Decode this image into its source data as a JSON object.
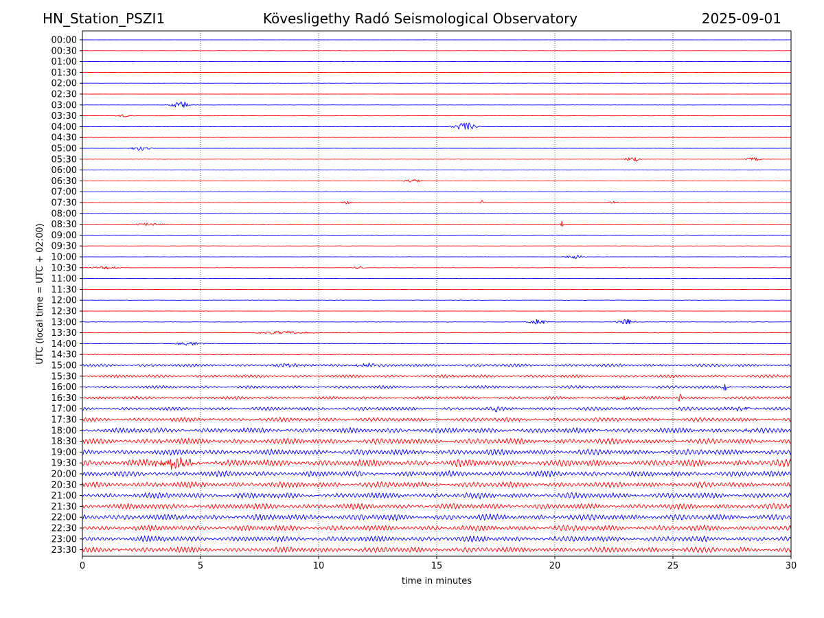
{
  "header": {
    "station": "HN_Station_PSZI1",
    "observatory": "Kövesligethy Radó Seismological Observatory",
    "date": "2025-09-01"
  },
  "chart_data": {
    "type": "line",
    "xlabel": "time in minutes",
    "ylabel": "UTC (local time = UTC + 02:00)",
    "xlim": [
      0,
      30
    ],
    "xticks": [
      0,
      5,
      10,
      15,
      20,
      25,
      30
    ],
    "vertical_gridlines": [
      5,
      10,
      15,
      20,
      25
    ],
    "grid_style": "dotted",
    "colors": {
      "even_rows": "#0000ff",
      "odd_rows": "#ff0000"
    },
    "row_labels": [
      "00:00",
      "00:30",
      "01:00",
      "01:30",
      "02:00",
      "02:30",
      "03:00",
      "03:30",
      "04:00",
      "04:30",
      "05:00",
      "05:30",
      "06:00",
      "06:30",
      "07:00",
      "07:30",
      "08:00",
      "08:30",
      "09:00",
      "09:30",
      "10:00",
      "10:30",
      "11:00",
      "11:30",
      "12:00",
      "12:30",
      "13:00",
      "13:30",
      "14:00",
      "14:30",
      "15:00",
      "15:30",
      "16:00",
      "16:30",
      "17:00",
      "17:30",
      "18:00",
      "18:30",
      "19:00",
      "19:30",
      "20:00",
      "20:30",
      "21:00",
      "21:30",
      "22:00",
      "22:30",
      "23:00",
      "23:30"
    ],
    "noise_level": [
      0.05,
      0.05,
      0.05,
      0.05,
      0.05,
      0.05,
      0.08,
      0.06,
      0.08,
      0.05,
      0.08,
      0.08,
      0.06,
      0.08,
      0.1,
      0.1,
      0.1,
      0.1,
      0.08,
      0.08,
      0.1,
      0.1,
      0.08,
      0.08,
      0.1,
      0.1,
      0.12,
      0.12,
      0.15,
      0.2,
      0.25,
      0.25,
      0.25,
      0.25,
      0.3,
      0.35,
      0.45,
      0.5,
      0.5,
      0.6,
      0.5,
      0.5,
      0.5,
      0.5,
      0.55,
      0.5,
      0.5,
      0.5
    ],
    "events": [
      {
        "row": 6,
        "x": 4.2,
        "amp": 0.6,
        "width": 0.6
      },
      {
        "row": 7,
        "x": 1.8,
        "amp": 0.3,
        "width": 0.4
      },
      {
        "row": 8,
        "x": 16.2,
        "amp": 0.8,
        "width": 0.6
      },
      {
        "row": 10,
        "x": 2.5,
        "amp": 0.4,
        "width": 0.5
      },
      {
        "row": 11,
        "x": 23.3,
        "amp": 0.5,
        "width": 0.4
      },
      {
        "row": 11,
        "x": 28.4,
        "amp": 0.4,
        "width": 0.4
      },
      {
        "row": 13,
        "x": 14.0,
        "amp": 0.3,
        "width": 0.5
      },
      {
        "row": 15,
        "x": 11.2,
        "amp": 0.3,
        "width": 0.3
      },
      {
        "row": 15,
        "x": 16.9,
        "amp": 0.5,
        "width": 0.1
      },
      {
        "row": 15,
        "x": 22.5,
        "amp": 0.3,
        "width": 0.3
      },
      {
        "row": 17,
        "x": 2.8,
        "amp": 0.3,
        "width": 0.8
      },
      {
        "row": 17,
        "x": 20.3,
        "amp": 0.7,
        "width": 0.1
      },
      {
        "row": 20,
        "x": 20.8,
        "amp": 0.35,
        "width": 0.5
      },
      {
        "row": 21,
        "x": 1.0,
        "amp": 0.3,
        "width": 0.8
      },
      {
        "row": 21,
        "x": 11.7,
        "amp": 0.3,
        "width": 0.3
      },
      {
        "row": 26,
        "x": 19.3,
        "amp": 0.5,
        "width": 0.5
      },
      {
        "row": 26,
        "x": 23.0,
        "amp": 0.55,
        "width": 0.5
      },
      {
        "row": 27,
        "x": 8.5,
        "amp": 0.3,
        "width": 1.4
      },
      {
        "row": 28,
        "x": 4.5,
        "amp": 0.35,
        "width": 0.7
      },
      {
        "row": 30,
        "x": 8.5,
        "amp": 0.4,
        "width": 0.6
      },
      {
        "row": 30,
        "x": 12.0,
        "amp": 0.35,
        "width": 0.6
      },
      {
        "row": 32,
        "x": 27.2,
        "amp": 0.7,
        "width": 0.15
      },
      {
        "row": 33,
        "x": 22.8,
        "amp": 0.45,
        "width": 0.5
      },
      {
        "row": 33,
        "x": 25.3,
        "amp": 0.8,
        "width": 0.1
      },
      {
        "row": 34,
        "x": 17.5,
        "amp": 0.6,
        "width": 0.1
      },
      {
        "row": 34,
        "x": 28.0,
        "amp": 0.35,
        "width": 0.7
      },
      {
        "row": 36,
        "x": 28.1,
        "amp": 0.7,
        "width": 0.2
      },
      {
        "row": 39,
        "x": 3.8,
        "amp": 0.9,
        "width": 1.2
      }
    ]
  }
}
